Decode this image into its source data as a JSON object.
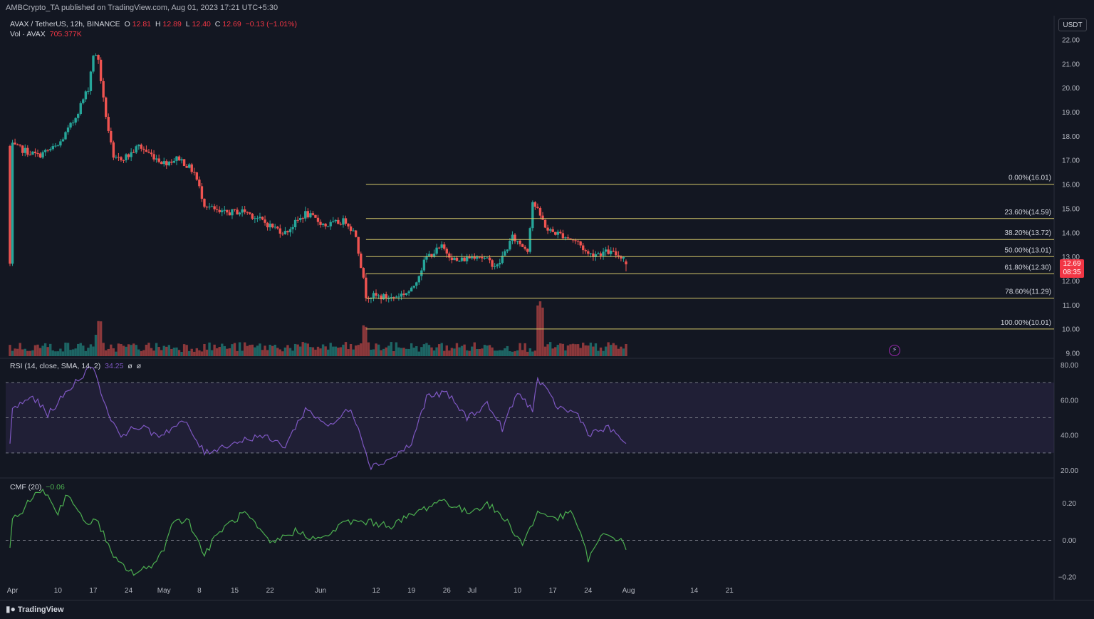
{
  "header": {
    "publisher_line": "AMBCrypto_TA published on TradingView.com, Aug 01, 2023 17:21 UTC+5:30"
  },
  "legend": {
    "pair": "AVAX / TetherUS, 12h, BINANCE",
    "o_label": "O",
    "o": "12.81",
    "h_label": "H",
    "h": "12.89",
    "l_label": "L",
    "l": "12.40",
    "c_label": "C",
    "c": "12.69",
    "change": "−0.13 (−1.01%)",
    "vol_label": "Vol · AVAX",
    "vol": "705.377K",
    "rsi_label": "RSI (14, close, SMA, 14, 2)",
    "rsi_value": "34.25",
    "rsi_extra1": "ø",
    "rsi_extra2": "ø",
    "cmf_label": "CMF (20)",
    "cmf_value": "−0.06"
  },
  "axis": {
    "currency": "USDT"
  },
  "last_price": {
    "value": "12.69",
    "countdown": "08:35"
  },
  "branding": {
    "logo_text": "TradingView"
  },
  "colors": {
    "bull": "#26a69a",
    "bear": "#ef5350",
    "fib": "#d4c86a",
    "rsi": "#7e57c2",
    "cmf": "#4caf50"
  },
  "chart_data": [
    {
      "type": "candlestick",
      "y_axis_ticks": [
        "22.00",
        "21.00",
        "20.00",
        "19.00",
        "18.00",
        "17.00",
        "16.00",
        "15.00",
        "14.00",
        "13.00",
        "12.00",
        "11.00",
        "10.00",
        "9.00"
      ],
      "ylim": [
        9.0,
        22.0
      ],
      "x_ticks": [
        "Apr",
        "10",
        "17",
        "24",
        "May",
        "8",
        "15",
        "22",
        "Jun",
        "12",
        "19",
        "26",
        "Jul",
        "10",
        "17",
        "24",
        "Aug",
        "14",
        "21"
      ],
      "close_anchors": [
        [
          "2023-04-01",
          17.6
        ],
        [
          "2023-04-06",
          17.2
        ],
        [
          "2023-04-10",
          17.6
        ],
        [
          "2023-04-13",
          18.6
        ],
        [
          "2023-04-16",
          20.0
        ],
        [
          "2023-04-17",
          21.4
        ],
        [
          "2023-04-18",
          21.2
        ],
        [
          "2023-04-19",
          19.5
        ],
        [
          "2023-04-21",
          17.0
        ],
        [
          "2023-04-24",
          17.2
        ],
        [
          "2023-04-26",
          17.6
        ],
        [
          "2023-04-28",
          17.3
        ],
        [
          "2023-05-01",
          16.9
        ],
        [
          "2023-05-04",
          17.1
        ],
        [
          "2023-05-07",
          16.5
        ],
        [
          "2023-05-09",
          15.2
        ],
        [
          "2023-05-12",
          14.8
        ],
        [
          "2023-05-17",
          14.9
        ],
        [
          "2023-05-22",
          14.3
        ],
        [
          "2023-05-25",
          14.0
        ],
        [
          "2023-05-29",
          14.8
        ],
        [
          "2023-06-02",
          14.3
        ],
        [
          "2023-06-06",
          14.5
        ],
        [
          "2023-06-08",
          13.9
        ],
        [
          "2023-06-10",
          11.4
        ],
        [
          "2023-06-15",
          11.3
        ],
        [
          "2023-06-19",
          11.6
        ],
        [
          "2023-06-22",
          13.0
        ],
        [
          "2023-06-25",
          13.4
        ],
        [
          "2023-06-28",
          12.8
        ],
        [
          "2023-07-02",
          13.1
        ],
        [
          "2023-07-06",
          12.6
        ],
        [
          "2023-07-09",
          13.8
        ],
        [
          "2023-07-12",
          13.3
        ],
        [
          "2023-07-13",
          15.3
        ],
        [
          "2023-07-16",
          14.1
        ],
        [
          "2023-07-19",
          13.9
        ],
        [
          "2023-07-22",
          13.6
        ],
        [
          "2023-07-24",
          13.1
        ],
        [
          "2023-07-28",
          13.2
        ],
        [
          "2023-07-31",
          13.0
        ],
        [
          "2023-08-01",
          12.69
        ]
      ],
      "ohlc_last": {
        "open": 12.81,
        "high": 12.89,
        "low": 12.4,
        "close": 12.69
      },
      "fib_levels": [
        {
          "label": "0.00%(16.01)",
          "value": 16.01
        },
        {
          "label": "23.60%(14.59)",
          "value": 14.59
        },
        {
          "label": "38.20%(13.72)",
          "value": 13.72
        },
        {
          "label": "50.00%(13.01)",
          "value": 13.01
        },
        {
          "label": "61.80%(12.30)",
          "value": 12.3
        },
        {
          "label": "78.60%(11.29)",
          "value": 11.29
        },
        {
          "label": "100.00%(10.01)",
          "value": 10.01
        }
      ],
      "fib_start_date": "2023-06-10"
    },
    {
      "type": "line",
      "name": "RSI (14, close, SMA, 14, 2)",
      "y_axis_ticks": [
        "80.00",
        "60.00",
        "40.00",
        "20.00"
      ],
      "ylim": [
        17,
        83
      ],
      "bands": [
        70,
        50,
        30
      ],
      "anchors": [
        [
          "2023-04-01",
          55
        ],
        [
          "2023-04-05",
          62
        ],
        [
          "2023-04-08",
          52
        ],
        [
          "2023-04-11",
          62
        ],
        [
          "2023-04-14",
          72
        ],
        [
          "2023-04-17",
          80
        ],
        [
          "2023-04-19",
          60
        ],
        [
          "2023-04-22",
          40
        ],
        [
          "2023-04-26",
          45
        ],
        [
          "2023-04-30",
          40
        ],
        [
          "2023-05-05",
          48
        ],
        [
          "2023-05-09",
          30
        ],
        [
          "2023-05-14",
          35
        ],
        [
          "2023-05-20",
          40
        ],
        [
          "2023-05-25",
          34
        ],
        [
          "2023-05-29",
          55
        ],
        [
          "2023-06-03",
          45
        ],
        [
          "2023-06-07",
          56
        ],
        [
          "2023-06-09",
          40
        ],
        [
          "2023-06-11",
          22
        ],
        [
          "2023-06-15",
          27
        ],
        [
          "2023-06-19",
          35
        ],
        [
          "2023-06-22",
          62
        ],
        [
          "2023-06-26",
          64
        ],
        [
          "2023-06-30",
          50
        ],
        [
          "2023-07-04",
          58
        ],
        [
          "2023-07-07",
          44
        ],
        [
          "2023-07-10",
          64
        ],
        [
          "2023-07-13",
          55
        ],
        [
          "2023-07-14",
          72
        ],
        [
          "2023-07-18",
          56
        ],
        [
          "2023-07-22",
          52
        ],
        [
          "2023-07-24",
          41
        ],
        [
          "2023-07-28",
          44
        ],
        [
          "2023-08-01",
          35
        ]
      ]
    },
    {
      "type": "line",
      "name": "CMF (20)",
      "y_axis_ticks": [
        "0.20",
        "0.00",
        "−0.20"
      ],
      "ylim": [
        -0.23,
        0.33
      ],
      "anchors": [
        [
          "2023-04-01",
          0.1
        ],
        [
          "2023-04-04",
          0.2
        ],
        [
          "2023-04-07",
          0.28
        ],
        [
          "2023-04-10",
          0.15
        ],
        [
          "2023-04-12",
          0.26
        ],
        [
          "2023-04-15",
          0.1
        ],
        [
          "2023-04-18",
          0.1
        ],
        [
          "2023-04-21",
          -0.1
        ],
        [
          "2023-04-25",
          -0.18
        ],
        [
          "2023-04-28",
          -0.15
        ],
        [
          "2023-05-01",
          -0.05
        ],
        [
          "2023-05-03",
          0.12
        ],
        [
          "2023-05-06",
          0.1
        ],
        [
          "2023-05-09",
          -0.08
        ],
        [
          "2023-05-12",
          0.05
        ],
        [
          "2023-05-17",
          0.15
        ],
        [
          "2023-05-22",
          -0.02
        ],
        [
          "2023-05-27",
          0.05
        ],
        [
          "2023-06-01",
          0.0
        ],
        [
          "2023-06-06",
          0.1
        ],
        [
          "2023-06-10",
          0.1
        ],
        [
          "2023-06-15",
          0.08
        ],
        [
          "2023-06-20",
          0.15
        ],
        [
          "2023-06-25",
          0.22
        ],
        [
          "2023-06-30",
          0.15
        ],
        [
          "2023-07-04",
          0.2
        ],
        [
          "2023-07-08",
          0.1
        ],
        [
          "2023-07-11",
          -0.02
        ],
        [
          "2023-07-14",
          0.15
        ],
        [
          "2023-07-18",
          0.12
        ],
        [
          "2023-07-21",
          0.15
        ],
        [
          "2023-07-24",
          -0.1
        ],
        [
          "2023-07-27",
          0.03
        ],
        [
          "2023-07-30",
          0.01
        ],
        [
          "2023-08-01",
          -0.06
        ]
      ]
    }
  ]
}
